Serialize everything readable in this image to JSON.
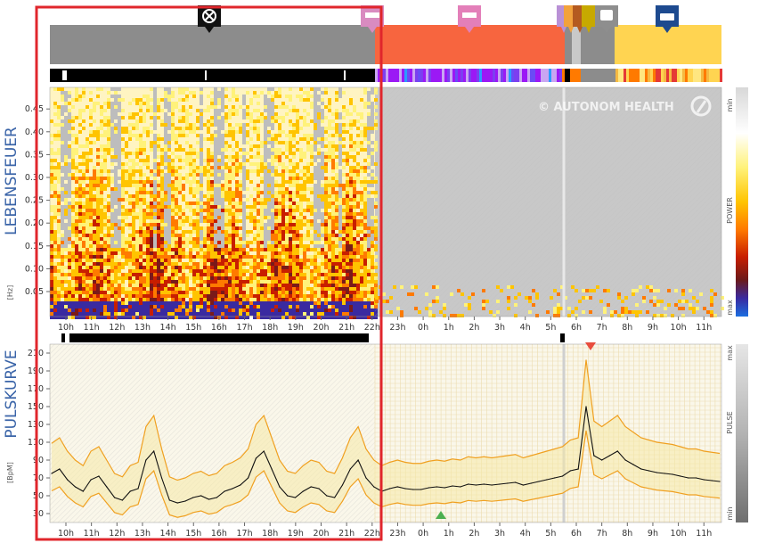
{
  "chart_data": {
    "type": "heatmap",
    "watermark": "© AUTONOM HEALTH",
    "top_panel": {
      "ylabel": "LEBENSFEUER",
      "unit": "[Hz]",
      "yticks": [
        "0.05",
        "0.10",
        "0.15",
        "0.20",
        "0.25",
        "0.30",
        "0.35",
        "0.40",
        "0.45"
      ],
      "scale_labels": {
        "top": "min",
        "middle": "POWER",
        "bottom": "max"
      }
    },
    "bottom_panel": {
      "type": "line",
      "ylabel": "PULSKURVE",
      "unit": "[BpM]",
      "yticks": [
        "30",
        "50",
        "70",
        "90",
        "110",
        "130",
        "150",
        "170",
        "190",
        "210"
      ],
      "ylim": [
        20,
        220
      ],
      "scale_labels": {
        "top": "max",
        "middle": "PULSE",
        "bottom": "min"
      },
      "series": [
        {
          "name": "",
          "values": [
            75,
            80,
            68,
            60,
            55,
            68,
            72,
            60,
            48,
            45,
            55,
            58,
            90,
            100,
            70,
            45,
            42,
            44,
            48,
            50,
            46,
            48,
            55,
            58,
            62,
            70,
            92,
            100,
            80,
            60,
            50,
            48,
            55,
            60,
            58,
            50,
            48,
            62,
            80,
            90,
            70,
            60,
            55,
            58,
            60,
            58,
            57,
            57,
            59,
            60,
            59,
            61,
            60,
            63,
            62,
            63,
            62,
            63,
            64,
            65,
            62,
            64,
            66,
            68,
            70,
            72,
            78,
            80,
            150,
            95,
            90,
            95,
            100,
            90,
            85,
            80,
            78,
            76,
            75,
            74,
            72,
            70,
            70,
            68,
            67,
            66
          ]
        }
      ]
    },
    "x_ticks": [
      "10h",
      "11h",
      "12h",
      "13h",
      "14h",
      "15h",
      "16h",
      "17h",
      "18h",
      "19h",
      "20h",
      "21h",
      "22h",
      "23h",
      "0h",
      "1h",
      "2h",
      "3h",
      "4h",
      "5h",
      "6h",
      "7h",
      "8h",
      "9h",
      "10h",
      "11h"
    ]
  }
}
